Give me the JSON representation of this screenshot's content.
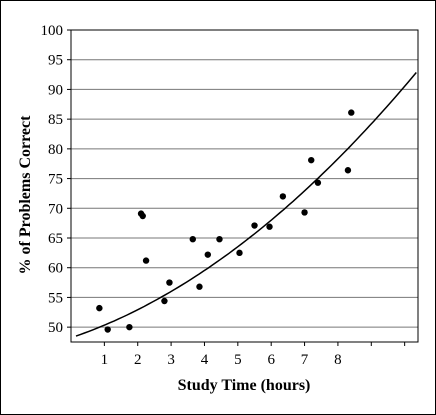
{
  "chart_data": {
    "type": "scatter",
    "xlabel": "Study Time (hours)",
    "ylabel": "% of Problems Correct",
    "xlim": [
      0,
      10.4
    ],
    "ylim": [
      47.5,
      100
    ],
    "x_ticks": [
      1,
      2,
      3,
      4,
      5,
      6,
      7,
      8
    ],
    "y_ticks": [
      50,
      55,
      60,
      65,
      70,
      75,
      80,
      85,
      90,
      95,
      100
    ],
    "grid": true,
    "points": [
      {
        "x": 0.85,
        "y": 53.2
      },
      {
        "x": 1.1,
        "y": 49.6
      },
      {
        "x": 1.75,
        "y": 50.0
      },
      {
        "x": 2.1,
        "y": 69.1
      },
      {
        "x": 2.15,
        "y": 68.7
      },
      {
        "x": 2.25,
        "y": 61.2
      },
      {
        "x": 2.8,
        "y": 54.4
      },
      {
        "x": 2.95,
        "y": 57.5
      },
      {
        "x": 3.65,
        "y": 64.8
      },
      {
        "x": 3.85,
        "y": 56.8
      },
      {
        "x": 4.1,
        "y": 62.2
      },
      {
        "x": 4.45,
        "y": 64.8
      },
      {
        "x": 5.05,
        "y": 62.5
      },
      {
        "x": 5.5,
        "y": 67.1
      },
      {
        "x": 5.95,
        "y": 66.9
      },
      {
        "x": 6.35,
        "y": 72.0
      },
      {
        "x": 7.0,
        "y": 69.3
      },
      {
        "x": 7.2,
        "y": 78.1
      },
      {
        "x": 7.4,
        "y": 74.3
      },
      {
        "x": 8.3,
        "y": 76.4
      },
      {
        "x": 8.4,
        "y": 86.1
      }
    ],
    "trend": {
      "type": "quadratic",
      "coefficients": {
        "a": 0.2333,
        "b": 1.9,
        "c": 48.2
      }
    }
  }
}
